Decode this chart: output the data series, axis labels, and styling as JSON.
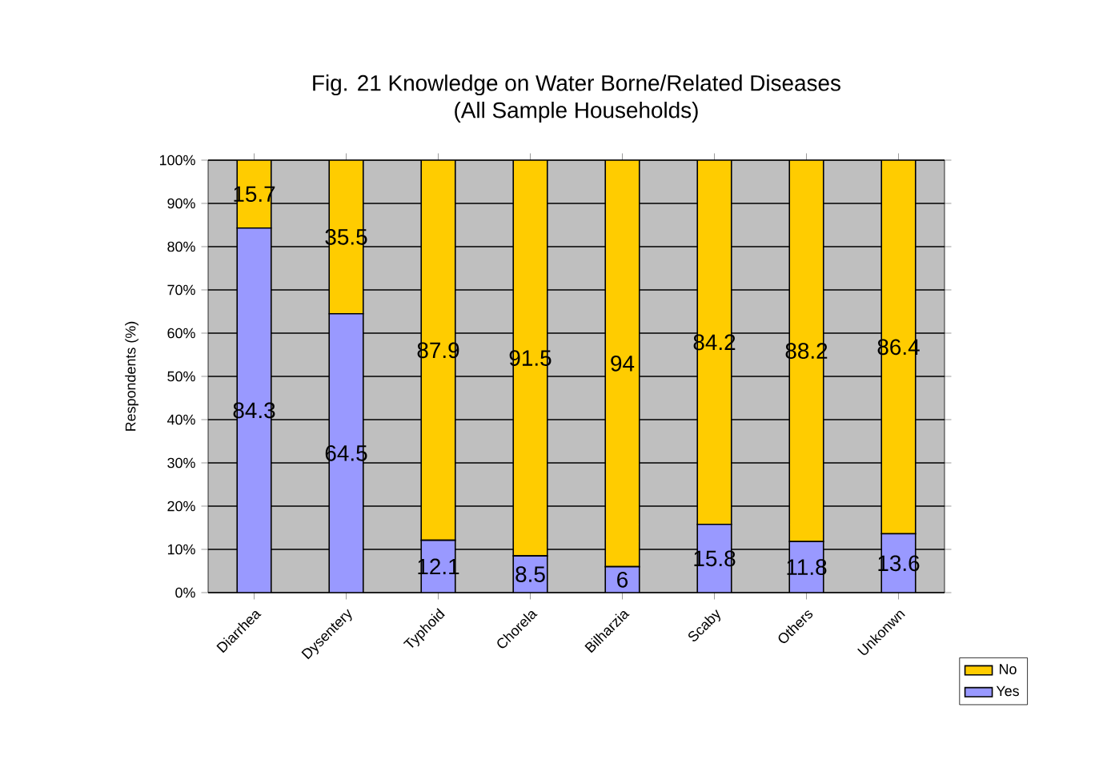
{
  "chart_data": {
    "type": "bar",
    "title": "Fig. 21 Knowledge on Water Borne/Related Diseases\n(All Sample Households)",
    "ylabel": "Respondents (%)",
    "categories": [
      "Diarrhea",
      "Dysentery",
      "Typhoid",
      "Chorela",
      "Bilharzia",
      "Scaby",
      "Others",
      "Unkonwn"
    ],
    "series": [
      {
        "name": "Yes",
        "color": "#9999ff",
        "values": [
          84.3,
          64.5,
          12.1,
          8.5,
          6,
          15.8,
          11.8,
          13.6
        ]
      },
      {
        "name": "No",
        "color": "#ffcc00",
        "values": [
          15.7,
          35.5,
          87.9,
          91.5,
          94,
          84.2,
          88.2,
          86.4
        ]
      }
    ],
    "stacked": true,
    "data_labels": true,
    "grid": "y",
    "legend": "bottom right",
    "ylim": [
      0,
      100
    ],
    "yticks": [
      {
        "value": 0,
        "label": "0%"
      },
      {
        "value": 10,
        "label": "10%"
      },
      {
        "value": 20,
        "label": "20%"
      },
      {
        "value": 30,
        "label": "30%"
      },
      {
        "value": 40,
        "label": "40%"
      },
      {
        "value": 50,
        "label": "50%"
      },
      {
        "value": 60,
        "label": "60%"
      },
      {
        "value": 70,
        "label": "70%"
      },
      {
        "value": 80,
        "label": "80%"
      },
      {
        "value": 90,
        "label": "90%"
      },
      {
        "value": 100,
        "label": "100%"
      }
    ]
  }
}
